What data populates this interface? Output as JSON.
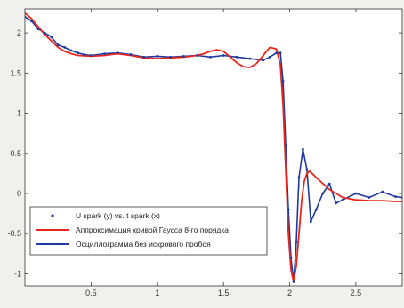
{
  "chart_data": {
    "type": "line",
    "title": "",
    "xlabel": "",
    "ylabel": "",
    "xlim": [
      0.0,
      2.85
    ],
    "ylim": [
      -1.15,
      2.3
    ],
    "grid": false,
    "legend_position": "bottom-left",
    "x_ticks": [
      0.5,
      1,
      1.5,
      2,
      2.5
    ],
    "x_tick_labels": [
      "0.5",
      "1",
      "1.5",
      "2",
      "2.5"
    ],
    "y_ticks": [
      -1,
      -0.5,
      0,
      0.5,
      1,
      1.5,
      2
    ],
    "y_tick_labels": [
      "-1",
      "-0.5",
      "0",
      "0.5",
      "1",
      "1.5",
      "2"
    ],
    "series": [
      {
        "name": "U spark (y) vs. t spark (x)",
        "color": "#1f3a9e",
        "style": "markers",
        "x": [
          0.0,
          0.05,
          0.1,
          0.15,
          0.2,
          0.25,
          0.3,
          0.35,
          0.4,
          0.45,
          0.5,
          0.6,
          0.7,
          0.8,
          0.9,
          1.0,
          1.1,
          1.2,
          1.3,
          1.4,
          1.5,
          1.6,
          1.7,
          1.8,
          1.85,
          1.9,
          1.93,
          1.95,
          1.97,
          1.99,
          2.01,
          2.03,
          2.05,
          2.07,
          2.1,
          2.13,
          2.16,
          2.2,
          2.25,
          2.3,
          2.35,
          2.4,
          2.5,
          2.6,
          2.7,
          2.8,
          2.85
        ],
        "y": [
          2.2,
          2.15,
          2.05,
          2.0,
          1.95,
          1.85,
          1.82,
          1.78,
          1.75,
          1.73,
          1.72,
          1.74,
          1.75,
          1.73,
          1.7,
          1.71,
          1.7,
          1.71,
          1.72,
          1.7,
          1.72,
          1.7,
          1.68,
          1.66,
          1.7,
          1.75,
          1.75,
          1.4,
          0.6,
          -0.2,
          -0.8,
          -1.1,
          -0.6,
          0.2,
          0.55,
          0.3,
          -0.35,
          -0.2,
          0.0,
          0.12,
          -0.12,
          -0.08,
          0.0,
          -0.05,
          0.02,
          -0.04,
          -0.05
        ]
      },
      {
        "name": "Аппроксимация кривой Гаусса 8-го порядка",
        "color": "#e8251c",
        "style": "line",
        "x": [
          0.0,
          0.05,
          0.1,
          0.15,
          0.2,
          0.25,
          0.3,
          0.35,
          0.4,
          0.5,
          0.6,
          0.7,
          0.8,
          0.9,
          1.0,
          1.1,
          1.2,
          1.3,
          1.35,
          1.4,
          1.45,
          1.5,
          1.55,
          1.6,
          1.65,
          1.7,
          1.75,
          1.8,
          1.85,
          1.9,
          1.93,
          1.95,
          1.97,
          1.99,
          2.01,
          2.03,
          2.05,
          2.07,
          2.09,
          2.11,
          2.13,
          2.15,
          2.2,
          2.3,
          2.4,
          2.5,
          2.6,
          2.7,
          2.8,
          2.85
        ],
        "y": [
          2.25,
          2.18,
          2.08,
          1.98,
          1.9,
          1.82,
          1.77,
          1.74,
          1.72,
          1.71,
          1.72,
          1.74,
          1.72,
          1.69,
          1.68,
          1.69,
          1.7,
          1.72,
          1.74,
          1.77,
          1.79,
          1.77,
          1.7,
          1.63,
          1.58,
          1.57,
          1.62,
          1.72,
          1.82,
          1.8,
          1.6,
          1.1,
          0.3,
          -0.5,
          -0.95,
          -1.1,
          -0.9,
          -0.5,
          -0.1,
          0.15,
          0.25,
          0.28,
          0.2,
          0.05,
          -0.05,
          -0.08,
          -0.09,
          -0.09,
          -0.1,
          -0.1
        ]
      },
      {
        "name": "Осциллограмма без искрового пробоя",
        "color": "#1f3a9e",
        "style": "line",
        "x": [
          0.0,
          0.05,
          0.1,
          0.15,
          0.2,
          0.25,
          0.3,
          0.35,
          0.4,
          0.45,
          0.5,
          0.6,
          0.7,
          0.8,
          0.9,
          1.0,
          1.1,
          1.2,
          1.3,
          1.4,
          1.5,
          1.6,
          1.7,
          1.8,
          1.85,
          1.9,
          1.93,
          1.95,
          1.97,
          1.99,
          2.01,
          2.03,
          2.05,
          2.07,
          2.1,
          2.13,
          2.16,
          2.2,
          2.25,
          2.3,
          2.35,
          2.4,
          2.5,
          2.6,
          2.7,
          2.8,
          2.85
        ],
        "y": [
          2.2,
          2.15,
          2.05,
          2.0,
          1.95,
          1.85,
          1.82,
          1.78,
          1.75,
          1.73,
          1.72,
          1.74,
          1.75,
          1.73,
          1.7,
          1.71,
          1.7,
          1.71,
          1.72,
          1.7,
          1.72,
          1.7,
          1.68,
          1.66,
          1.7,
          1.75,
          1.75,
          1.4,
          0.6,
          -0.2,
          -0.8,
          -1.1,
          -0.6,
          0.2,
          0.55,
          0.3,
          -0.35,
          -0.2,
          0.0,
          0.12,
          -0.12,
          -0.08,
          0.0,
          -0.05,
          0.02,
          -0.04,
          -0.05
        ]
      }
    ]
  }
}
